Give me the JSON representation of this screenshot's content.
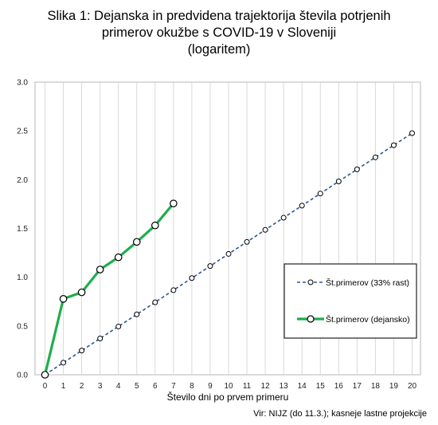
{
  "chart_data": {
    "type": "line",
    "title_lines": [
      "Slika 1: Dejanska in predvidena trajektorija števila potrjenih",
      "primerov okužbe s COVID-19 v Sloveniji",
      "(logaritem)"
    ],
    "xlabel": "Število dni po prvem primeru",
    "ylabel": "",
    "xlim": [
      0,
      20
    ],
    "ylim": [
      0,
      3
    ],
    "x_ticks": [
      "0",
      "1",
      "2",
      "3",
      "4",
      "5",
      "6",
      "7",
      "8",
      "9",
      "10",
      "11",
      "12",
      "13",
      "14",
      "15",
      "16",
      "17",
      "18",
      "19",
      "20"
    ],
    "y_ticks": [
      "0.0",
      "0.5",
      "1.0",
      "1.5",
      "2.0",
      "2.5",
      "3.0"
    ],
    "grid": "vertical",
    "legend_position": "right",
    "series": [
      {
        "name": "Št.primerov (33% rast)",
        "style": "dashed",
        "color": "#2f5597",
        "x": [
          0,
          1,
          2,
          3,
          4,
          5,
          6,
          7,
          8,
          9,
          10,
          11,
          12,
          13,
          14,
          15,
          16,
          17,
          18,
          19,
          20
        ],
        "y": [
          0.0,
          0.124,
          0.248,
          0.372,
          0.495,
          0.619,
          0.743,
          0.867,
          0.991,
          1.115,
          1.239,
          1.362,
          1.486,
          1.61,
          1.734,
          1.858,
          1.982,
          2.106,
          2.229,
          2.353,
          2.477
        ]
      },
      {
        "name": "Št.primerov (dejansko)",
        "style": "solid",
        "color": "#1fae4b",
        "x": [
          0,
          1,
          2,
          3,
          4,
          5,
          6,
          7
        ],
        "y": [
          0.0,
          0.778,
          0.845,
          1.079,
          1.204,
          1.362,
          1.531,
          1.756
        ]
      }
    ]
  },
  "source": "Vir: NIJZ (do 11.3.); kasneje lastne projekcije"
}
